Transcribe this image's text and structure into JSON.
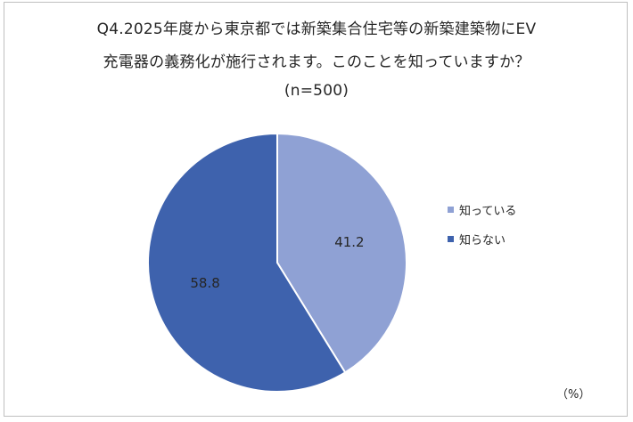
{
  "chart_data": {
    "type": "pie",
    "title_lines": [
      "Q4.2025年度から東京都では新築集合住宅等の新築建築物にEV",
      "充電器の義務化が施行されます。このことを知っていますか？",
      "(n=500)"
    ],
    "unit_label": "（%）",
    "slices": [
      {
        "label": "知っている",
        "value": 41.2,
        "display": "41.2",
        "color": "#8fa1d4"
      },
      {
        "label": "知らない",
        "value": 58.8,
        "display": "58.8",
        "color": "#3e62ad"
      }
    ],
    "start_angle_deg": 0,
    "direction": "clockwise",
    "legend_position": "right"
  }
}
